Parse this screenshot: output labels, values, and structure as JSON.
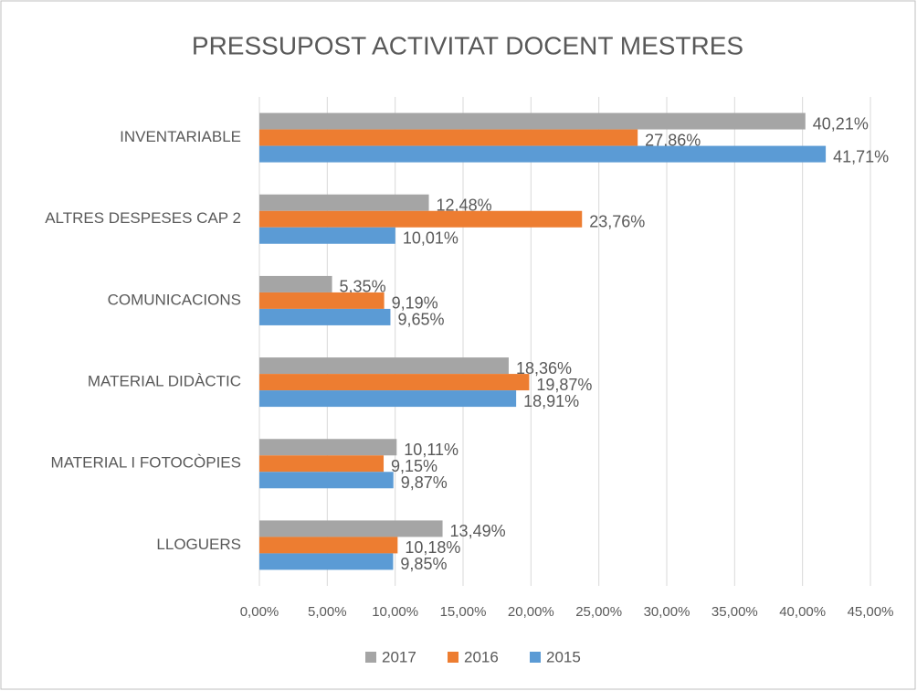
{
  "chart_data": {
    "type": "bar",
    "orientation": "horizontal",
    "title": "PRESSUPOST ACTIVITAT DOCENT MESTRES",
    "categories": [
      "INVENTARIABLE",
      "ALTRES DESPESES CAP 2",
      "COMUNICACIONS",
      "MATERIAL DIDÀCTIC",
      "MATERIAL I FOTOCÒPIES",
      "LLOGUERS"
    ],
    "series": [
      {
        "name": "2017",
        "color": "#a5a5a5",
        "values": [
          40.21,
          12.48,
          5.35,
          18.36,
          10.11,
          13.49
        ],
        "value_labels": [
          "40,21%",
          "12,48%",
          "5,35%",
          "18,36%",
          "10,11%",
          "13,49%"
        ]
      },
      {
        "name": "2016",
        "color": "#ed7d31",
        "values": [
          27.86,
          23.76,
          9.19,
          19.87,
          9.15,
          10.18
        ],
        "value_labels": [
          "27,86%",
          "23,76%",
          "9,19%",
          "19,87%",
          "9,15%",
          "10,18%"
        ]
      },
      {
        "name": "2015",
        "color": "#5b9bd5",
        "values": [
          41.71,
          10.01,
          9.65,
          18.91,
          9.87,
          9.85
        ],
        "value_labels": [
          "41,71%",
          "10,01%",
          "9,65%",
          "18,91%",
          "9,87%",
          "9,85%"
        ]
      }
    ],
    "xlim": [
      0,
      45
    ],
    "xticks": [
      {
        "value": 0,
        "label": "0,00%"
      },
      {
        "value": 5,
        "label": "5,00%"
      },
      {
        "value": 10,
        "label": "10,00%"
      },
      {
        "value": 15,
        "label": "15,00%"
      },
      {
        "value": 20,
        "label": "20,00%"
      },
      {
        "value": 25,
        "label": "25,00%"
      },
      {
        "value": 30,
        "label": "30,00%"
      },
      {
        "value": 35,
        "label": "35,00%"
      },
      {
        "value": 40,
        "label": "40,00%"
      },
      {
        "value": 45,
        "label": "45,00%"
      }
    ],
    "grid": true,
    "legend": "bottom"
  }
}
